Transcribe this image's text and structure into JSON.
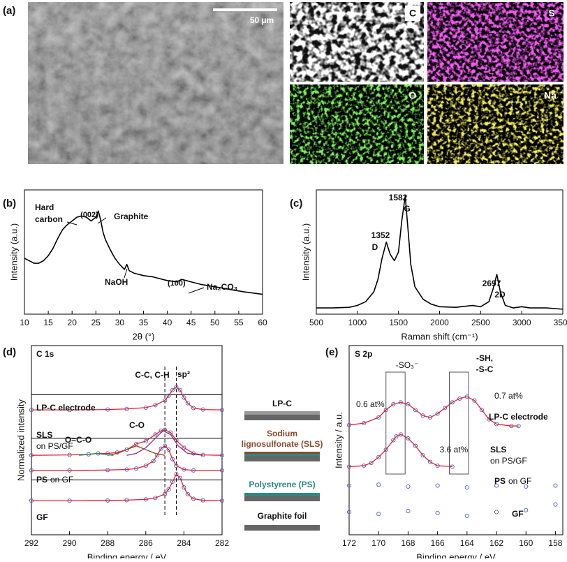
{
  "figure": {
    "panel_labels": [
      "(a)",
      "(b)",
      "(c)",
      "(d)",
      "(e)"
    ],
    "scale_bar": "50 µm",
    "map_labels": [
      "C",
      "S",
      "O",
      "Na"
    ],
    "schematic": [
      "LP-C",
      "Sodium",
      "lignosulfonate (SLS)",
      "Polystyrene (PS)",
      "Graphite foil"
    ]
  },
  "chart_data": [
    {
      "type": "line",
      "xlabel": "2θ (°)",
      "ylabel": "Intensity (a.u.)",
      "x": [
        10,
        11,
        12,
        13,
        14,
        15,
        16,
        17,
        18,
        19,
        20,
        21,
        22,
        23,
        24,
        25,
        25.5,
        26,
        26.5,
        27,
        28,
        29,
        30,
        31,
        31.5,
        32,
        33,
        35,
        37,
        40,
        42,
        43,
        44,
        45,
        47,
        50,
        53,
        56,
        60
      ],
      "series": [
        {
          "color": "#000000",
          "values": [
            45,
            43,
            41,
            41,
            43,
            47,
            53,
            61,
            68,
            72,
            75,
            78,
            79,
            78,
            75,
            78,
            83,
            76,
            66,
            60,
            52,
            45,
            40,
            36,
            40,
            35,
            33,
            31,
            30,
            27,
            26,
            28,
            27,
            26,
            24,
            22,
            20,
            18,
            16
          ]
        }
      ],
      "xlim": [
        10,
        60
      ],
      "xticks": [
        10,
        15,
        20,
        25,
        30,
        35,
        40,
        45,
        50,
        55,
        60
      ],
      "ylim": [
        0,
        100
      ],
      "annotations": [
        "Hard",
        "carbon",
        "(002)",
        "Graphite",
        "NaOH",
        "(100)",
        "Na₂CO₃"
      ]
    },
    {
      "type": "line",
      "xlabel": "Raman shift (cm⁻¹)",
      "ylabel": "Intensity (a.u.)",
      "x": [
        500,
        700,
        900,
        1000,
        1100,
        1200,
        1250,
        1300,
        1352,
        1400,
        1450,
        1500,
        1540,
        1582,
        1620,
        1650,
        1700,
        1800,
        1900,
        2000,
        2200,
        2400,
        2500,
        2600,
        2650,
        2697,
        2740,
        2800,
        2900,
        3000,
        3100,
        3300,
        3500
      ],
      "series": [
        {
          "color": "#000000",
          "values": [
            5,
            5,
            5.5,
            7,
            10,
            18,
            28,
            45,
            58,
            48,
            43,
            50,
            75,
            95,
            65,
            40,
            22,
            12,
            8,
            6,
            5.5,
            7,
            6,
            10,
            20,
            32,
            18,
            7,
            5,
            6,
            5,
            5,
            4
          ]
        }
      ],
      "xlim": [
        500,
        3500
      ],
      "xticks": [
        500,
        1000,
        1500,
        2000,
        2500,
        3000,
        3500
      ],
      "ylim": [
        0,
        100
      ],
      "annotations": [
        "1352",
        "D",
        "1582",
        "G",
        "2697",
        "2D"
      ]
    },
    {
      "type": "line",
      "xlabel": "Binding energy / eV",
      "ylabel": "Normalized intensity",
      "series": [
        {
          "color": "#e0203a",
          "marker": "#5b6fc0",
          "x": [
            292,
            290,
            288,
            287,
            286,
            285.5,
            285,
            284.8,
            284.6,
            284.4,
            284.2,
            284,
            283.8,
            283.5,
            283,
            282
          ],
          "values": [
            66,
            66,
            66.2,
            66.5,
            67.2,
            68.5,
            71,
            73.5,
            76.5,
            78,
            76.5,
            72.5,
            69.5,
            67,
            66.2,
            66
          ]
        },
        {
          "color": "#e0203a",
          "marker": "#5b6fc0",
          "x": [
            292,
            290,
            289,
            288.5,
            288,
            287.5,
            287,
            286.5,
            286,
            285.5,
            285.2,
            285,
            284.7,
            284.4,
            284,
            283.5,
            283,
            282
          ],
          "values": [
            42,
            42.2,
            42.5,
            43,
            43,
            43.5,
            45,
            48,
            49.5,
            53,
            55,
            55.5,
            54,
            50,
            46,
            43,
            42.2,
            42
          ]
        },
        {
          "color": "#8b4513",
          "x": [
            288,
            287.5,
            287,
            286.5,
            286,
            285.5,
            285
          ],
          "values": [
            42,
            43,
            45,
            47,
            45,
            43,
            42
          ]
        },
        {
          "color": "#8a2d8a",
          "x": [
            287,
            286.5,
            286,
            285.5,
            285.1,
            284.7,
            284.3,
            283.8,
            283
          ],
          "values": [
            42,
            43,
            46,
            51,
            55,
            53,
            47,
            43,
            42
          ]
        },
        {
          "color": "#2e8b57",
          "x": [
            289.5,
            289,
            288.6,
            288.2,
            287.7
          ],
          "values": [
            42,
            42.5,
            43,
            42.5,
            42
          ]
        },
        {
          "color": "#e0203a",
          "marker": "#5b6fc0",
          "x": [
            292,
            290,
            288,
            287,
            286.5,
            286,
            285.6,
            285.4,
            285.2,
            285,
            284.8,
            284.6,
            284.4,
            284,
            283.5,
            282
          ],
          "values": [
            34,
            34,
            34.2,
            34.5,
            35,
            36.5,
            39,
            42,
            45.5,
            47,
            45,
            40,
            36.5,
            34.5,
            34,
            34
          ]
        },
        {
          "color": "#e0203a",
          "marker": "#5b6fc0",
          "x": [
            292,
            290,
            288,
            287,
            286,
            285.5,
            285,
            284.8,
            284.6,
            284.4,
            284.2,
            284,
            283.8,
            283.5,
            283,
            282
          ],
          "values": [
            18,
            18,
            18.1,
            18.3,
            18.7,
            19.5,
            21.5,
            24,
            28,
            32,
            30,
            25,
            21.5,
            19,
            18.2,
            18
          ]
        }
      ],
      "xlim": [
        292,
        282
      ],
      "xticks": [
        292,
        290,
        288,
        286,
        284,
        282
      ],
      "ylim": [
        0,
        100
      ],
      "reference_lines": [
        285.0,
        284.4
      ],
      "annotations": [
        "C 1s",
        "C-C, C-H",
        "sp²",
        "O=C-O",
        "C-O",
        "LP-C electrode",
        "SLS",
        "on PS/GF",
        "PS",
        "on GF",
        "GF"
      ]
    },
    {
      "type": "line",
      "xlabel": "Binding energy / eV",
      "ylabel": "Intensity / a.u.",
      "series": [
        {
          "color": "#e0203a",
          "marker": "#5b6fc0",
          "x": [
            172,
            171,
            170,
            169.5,
            169,
            168.5,
            168,
            167.5,
            167,
            166.5,
            166,
            165.5,
            165,
            164.5,
            164,
            163.5,
            163,
            162.5,
            162,
            161,
            160.5
          ],
          "values": [
            58,
            59,
            62,
            66,
            69,
            70,
            69,
            66,
            63,
            62,
            64,
            67,
            70,
            72,
            73,
            71,
            66,
            61,
            58.5,
            57.5,
            57.5
          ]
        },
        {
          "color": "#e0203a",
          "marker": "#5b6fc0",
          "x": [
            172,
            171,
            170.5,
            170,
            169.5,
            169,
            168.8,
            168.5,
            168,
            167.5,
            167,
            166.5,
            166,
            165
          ],
          "values": [
            36,
            36.5,
            38,
            41,
            45,
            50,
            52,
            53,
            51,
            47,
            42,
            38.5,
            36.5,
            36
          ]
        },
        {
          "marker": "#5b6fc0",
          "x": [
            172,
            170,
            168,
            166,
            164,
            162,
            160,
            158
          ],
          "values": [
            26,
            26.5,
            25.5,
            26,
            25,
            26,
            25.5,
            26
          ]
        },
        {
          "marker": "#5b6fc0",
          "x": [
            172,
            170,
            168,
            166,
            164,
            162,
            160,
            158
          ],
          "values": [
            12,
            11,
            12.5,
            11.5,
            10,
            12,
            13,
            16
          ]
        }
      ],
      "xlim": [
        172,
        157.5
      ],
      "xticks": [
        172,
        170,
        168,
        166,
        164,
        162,
        160,
        158
      ],
      "ylim": [
        0,
        100
      ],
      "reference_ranges": [
        [
          169.5,
          168.2
        ],
        [
          165.2,
          163.9
        ]
      ],
      "annotations": [
        "S 2p",
        "-SO₃⁻",
        "-SH,",
        "-S-C",
        "0.6 at%",
        "0.7 at%",
        "LP-C electrode",
        "3.6 at%",
        "SLS",
        "on PS/GF",
        "PS",
        "on GF",
        "GF"
      ]
    }
  ]
}
